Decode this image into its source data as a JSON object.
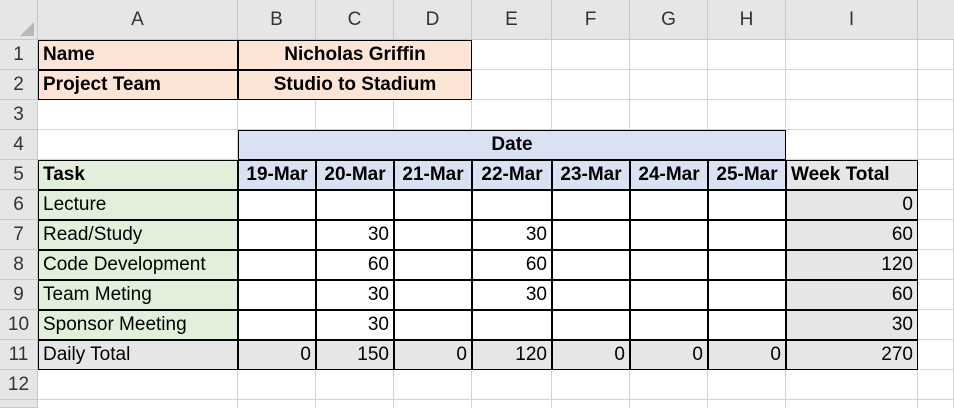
{
  "columns": [
    "A",
    "B",
    "C",
    "D",
    "E",
    "F",
    "G",
    "H",
    "I"
  ],
  "rows": [
    "1",
    "2",
    "3",
    "4",
    "5",
    "6",
    "7",
    "8",
    "9",
    "10",
    "11",
    "12"
  ],
  "cells": {
    "name_label": "Name",
    "name_value": "Nicholas Griffin",
    "team_label": "Project Team",
    "team_value": "Studio to Stadium",
    "date_header": "Date",
    "task_header": "Task",
    "dates": [
      "19-Mar",
      "20-Mar",
      "21-Mar",
      "22-Mar",
      "23-Mar",
      "24-Mar",
      "25-Mar"
    ],
    "week_total_header": "Week Total",
    "tasks": [
      {
        "name": "Lecture",
        "values": [
          "",
          "",
          "",
          "",
          "",
          "",
          ""
        ],
        "total": "0"
      },
      {
        "name": "Read/Study",
        "values": [
          "",
          "30",
          "",
          "30",
          "",
          "",
          ""
        ],
        "total": "60"
      },
      {
        "name": "Code Development",
        "values": [
          "",
          "60",
          "",
          "60",
          "",
          "",
          ""
        ],
        "total": "120"
      },
      {
        "name": "Team Meting",
        "values": [
          "",
          "30",
          "",
          "30",
          "",
          "",
          ""
        ],
        "total": "60"
      },
      {
        "name": "Sponsor Meeting",
        "values": [
          "",
          "30",
          "",
          "",
          "",
          "",
          ""
        ],
        "total": "30"
      }
    ],
    "daily_total_label": "Daily Total",
    "daily_totals": [
      "0",
      "150",
      "0",
      "120",
      "0",
      "0",
      "0"
    ],
    "grand_total": "270"
  }
}
